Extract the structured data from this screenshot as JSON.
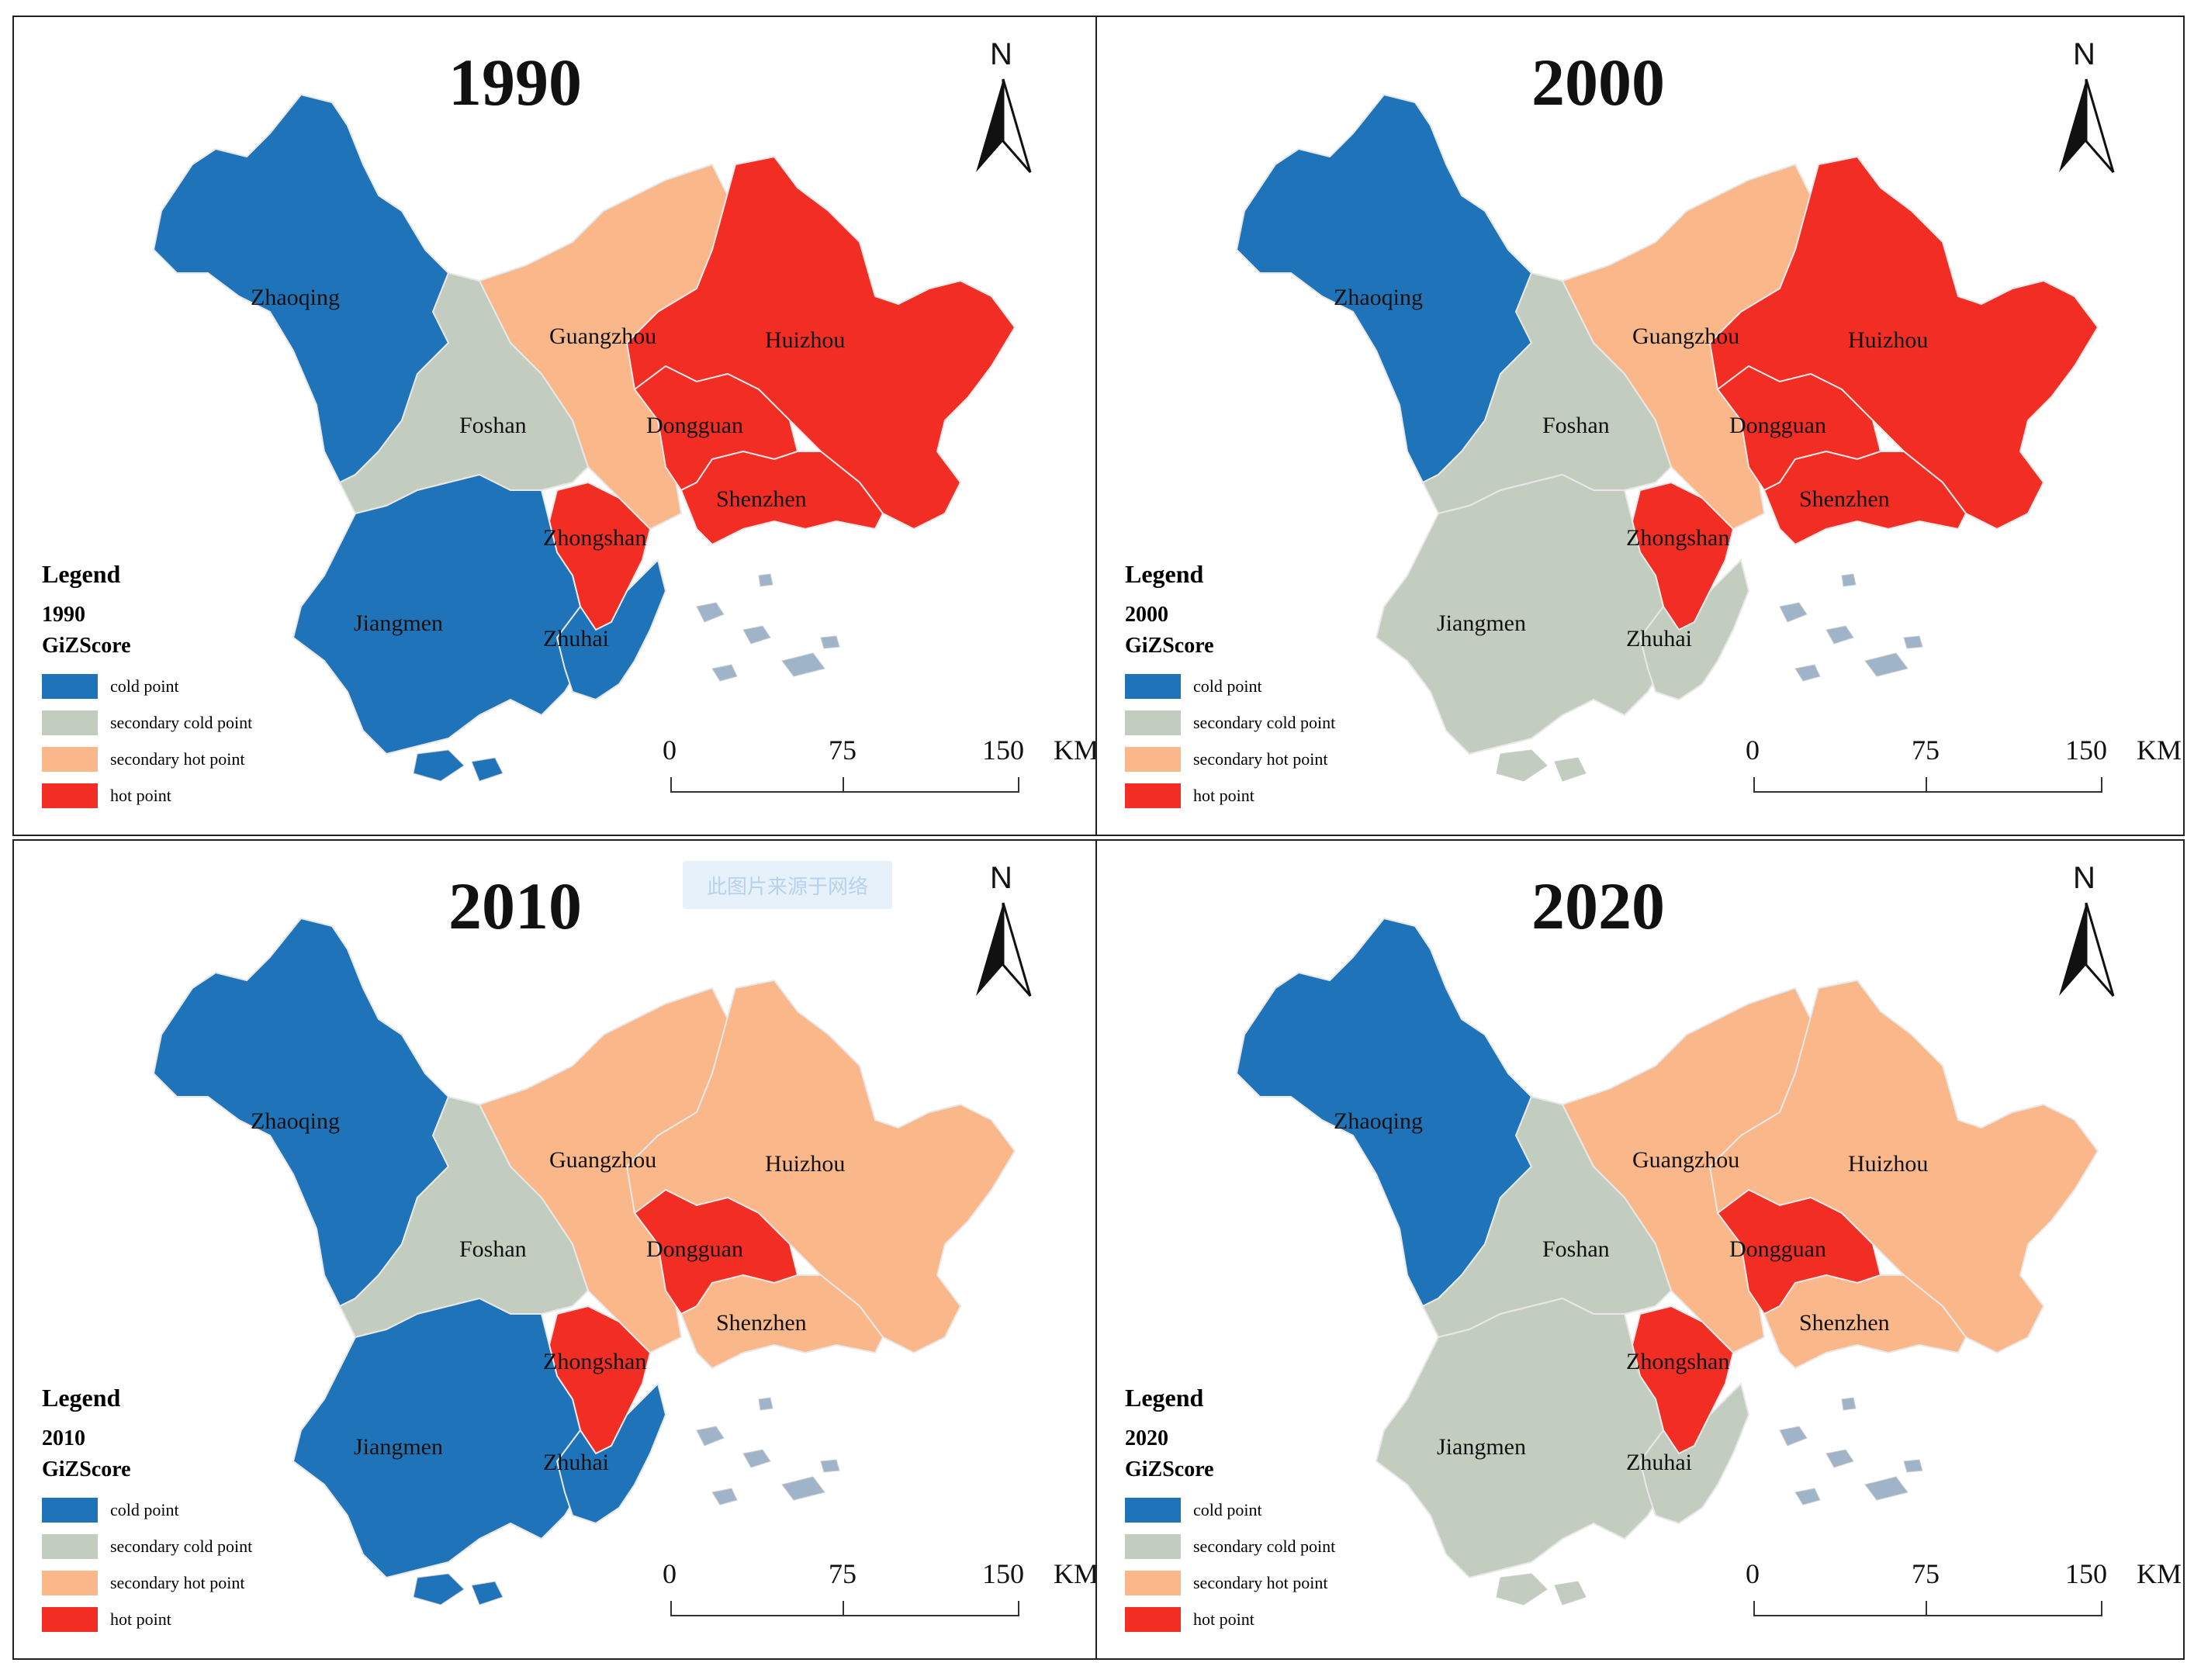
{
  "colors": {
    "cold point": "#1f73b8",
    "secondary cold point": "#c3cdbf",
    "secondary hot point": "#fab88a",
    "hot point": "#f12d24"
  },
  "legend": {
    "title": "Legend",
    "subtitle": "GiZScore",
    "items": [
      "cold point",
      "secondary cold point",
      "secondary hot point",
      "hot point"
    ]
  },
  "north_label": "N",
  "scale_bar": {
    "ticks": [
      "0",
      "75",
      "150"
    ],
    "unit": "KM"
  },
  "watermark_text": "此图片来源于网络",
  "cities": [
    "Zhaoqing",
    "Guangzhou",
    "Huizhou",
    "Foshan",
    "Dongguan",
    "Shenzhen",
    "Zhongshan",
    "Jiangmen",
    "Zhuhai"
  ],
  "panels": [
    {
      "year": "1990",
      "classes": {
        "Zhaoqing": "cold point",
        "Guangzhou": "secondary hot point",
        "Huizhou": "hot point",
        "Foshan": "secondary cold point",
        "Dongguan": "hot point",
        "Shenzhen": "hot point",
        "Zhongshan": "hot point",
        "Jiangmen": "cold point",
        "Zhuhai": "cold point"
      }
    },
    {
      "year": "2000",
      "classes": {
        "Zhaoqing": "cold point",
        "Guangzhou": "secondary hot point",
        "Huizhou": "hot point",
        "Foshan": "secondary cold point",
        "Dongguan": "hot point",
        "Shenzhen": "hot point",
        "Zhongshan": "hot point",
        "Jiangmen": "secondary cold point",
        "Zhuhai": "secondary cold point"
      }
    },
    {
      "year": "2010",
      "classes": {
        "Zhaoqing": "cold point",
        "Guangzhou": "secondary hot point",
        "Huizhou": "secondary hot point",
        "Foshan": "secondary cold point",
        "Dongguan": "hot point",
        "Shenzhen": "secondary hot point",
        "Zhongshan": "hot point",
        "Jiangmen": "cold point",
        "Zhuhai": "cold point"
      }
    },
    {
      "year": "2020",
      "classes": {
        "Zhaoqing": "cold point",
        "Guangzhou": "secondary hot point",
        "Huizhou": "secondary hot point",
        "Foshan": "secondary cold point",
        "Dongguan": "hot point",
        "Shenzhen": "secondary hot point",
        "Zhongshan": "hot point",
        "Jiangmen": "secondary cold point",
        "Zhuhai": "secondary cold point"
      }
    }
  ]
}
